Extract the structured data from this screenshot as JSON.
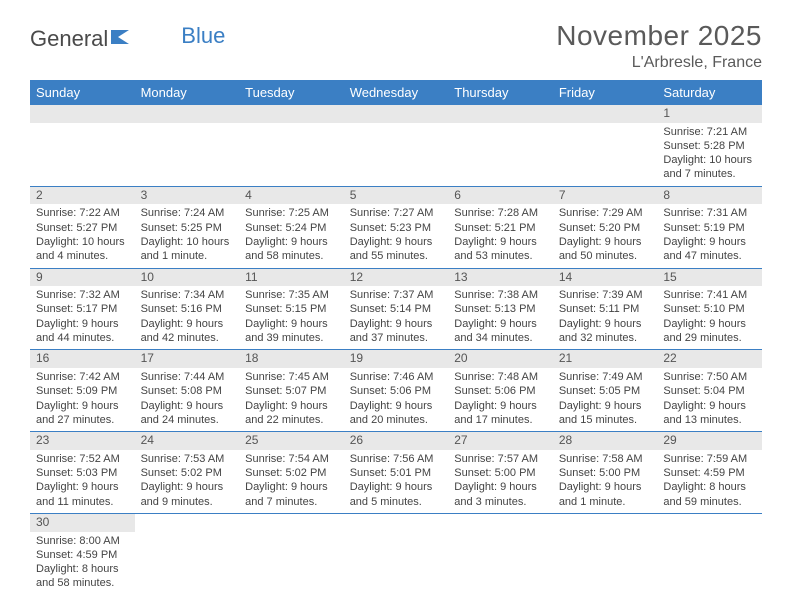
{
  "logo": {
    "part1": "General",
    "part2": "Blue"
  },
  "title": "November 2025",
  "location": "L'Arbresle, France",
  "colors": {
    "header_bg": "#3b7fc4",
    "header_text": "#ffffff",
    "daynum_bg": "#e8e8e8",
    "border": "#3b7fc4",
    "text": "#444444"
  },
  "weekdays": [
    "Sunday",
    "Monday",
    "Tuesday",
    "Wednesday",
    "Thursday",
    "Friday",
    "Saturday"
  ],
  "weeks": [
    [
      null,
      null,
      null,
      null,
      null,
      null,
      {
        "n": "1",
        "sunrise": "Sunrise: 7:21 AM",
        "sunset": "Sunset: 5:28 PM",
        "daylight": "Daylight: 10 hours and 7 minutes."
      }
    ],
    [
      {
        "n": "2",
        "sunrise": "Sunrise: 7:22 AM",
        "sunset": "Sunset: 5:27 PM",
        "daylight": "Daylight: 10 hours and 4 minutes."
      },
      {
        "n": "3",
        "sunrise": "Sunrise: 7:24 AM",
        "sunset": "Sunset: 5:25 PM",
        "daylight": "Daylight: 10 hours and 1 minute."
      },
      {
        "n": "4",
        "sunrise": "Sunrise: 7:25 AM",
        "sunset": "Sunset: 5:24 PM",
        "daylight": "Daylight: 9 hours and 58 minutes."
      },
      {
        "n": "5",
        "sunrise": "Sunrise: 7:27 AM",
        "sunset": "Sunset: 5:23 PM",
        "daylight": "Daylight: 9 hours and 55 minutes."
      },
      {
        "n": "6",
        "sunrise": "Sunrise: 7:28 AM",
        "sunset": "Sunset: 5:21 PM",
        "daylight": "Daylight: 9 hours and 53 minutes."
      },
      {
        "n": "7",
        "sunrise": "Sunrise: 7:29 AM",
        "sunset": "Sunset: 5:20 PM",
        "daylight": "Daylight: 9 hours and 50 minutes."
      },
      {
        "n": "8",
        "sunrise": "Sunrise: 7:31 AM",
        "sunset": "Sunset: 5:19 PM",
        "daylight": "Daylight: 9 hours and 47 minutes."
      }
    ],
    [
      {
        "n": "9",
        "sunrise": "Sunrise: 7:32 AM",
        "sunset": "Sunset: 5:17 PM",
        "daylight": "Daylight: 9 hours and 44 minutes."
      },
      {
        "n": "10",
        "sunrise": "Sunrise: 7:34 AM",
        "sunset": "Sunset: 5:16 PM",
        "daylight": "Daylight: 9 hours and 42 minutes."
      },
      {
        "n": "11",
        "sunrise": "Sunrise: 7:35 AM",
        "sunset": "Sunset: 5:15 PM",
        "daylight": "Daylight: 9 hours and 39 minutes."
      },
      {
        "n": "12",
        "sunrise": "Sunrise: 7:37 AM",
        "sunset": "Sunset: 5:14 PM",
        "daylight": "Daylight: 9 hours and 37 minutes."
      },
      {
        "n": "13",
        "sunrise": "Sunrise: 7:38 AM",
        "sunset": "Sunset: 5:13 PM",
        "daylight": "Daylight: 9 hours and 34 minutes."
      },
      {
        "n": "14",
        "sunrise": "Sunrise: 7:39 AM",
        "sunset": "Sunset: 5:11 PM",
        "daylight": "Daylight: 9 hours and 32 minutes."
      },
      {
        "n": "15",
        "sunrise": "Sunrise: 7:41 AM",
        "sunset": "Sunset: 5:10 PM",
        "daylight": "Daylight: 9 hours and 29 minutes."
      }
    ],
    [
      {
        "n": "16",
        "sunrise": "Sunrise: 7:42 AM",
        "sunset": "Sunset: 5:09 PM",
        "daylight": "Daylight: 9 hours and 27 minutes."
      },
      {
        "n": "17",
        "sunrise": "Sunrise: 7:44 AM",
        "sunset": "Sunset: 5:08 PM",
        "daylight": "Daylight: 9 hours and 24 minutes."
      },
      {
        "n": "18",
        "sunrise": "Sunrise: 7:45 AM",
        "sunset": "Sunset: 5:07 PM",
        "daylight": "Daylight: 9 hours and 22 minutes."
      },
      {
        "n": "19",
        "sunrise": "Sunrise: 7:46 AM",
        "sunset": "Sunset: 5:06 PM",
        "daylight": "Daylight: 9 hours and 20 minutes."
      },
      {
        "n": "20",
        "sunrise": "Sunrise: 7:48 AM",
        "sunset": "Sunset: 5:06 PM",
        "daylight": "Daylight: 9 hours and 17 minutes."
      },
      {
        "n": "21",
        "sunrise": "Sunrise: 7:49 AM",
        "sunset": "Sunset: 5:05 PM",
        "daylight": "Daylight: 9 hours and 15 minutes."
      },
      {
        "n": "22",
        "sunrise": "Sunrise: 7:50 AM",
        "sunset": "Sunset: 5:04 PM",
        "daylight": "Daylight: 9 hours and 13 minutes."
      }
    ],
    [
      {
        "n": "23",
        "sunrise": "Sunrise: 7:52 AM",
        "sunset": "Sunset: 5:03 PM",
        "daylight": "Daylight: 9 hours and 11 minutes."
      },
      {
        "n": "24",
        "sunrise": "Sunrise: 7:53 AM",
        "sunset": "Sunset: 5:02 PM",
        "daylight": "Daylight: 9 hours and 9 minutes."
      },
      {
        "n": "25",
        "sunrise": "Sunrise: 7:54 AM",
        "sunset": "Sunset: 5:02 PM",
        "daylight": "Daylight: 9 hours and 7 minutes."
      },
      {
        "n": "26",
        "sunrise": "Sunrise: 7:56 AM",
        "sunset": "Sunset: 5:01 PM",
        "daylight": "Daylight: 9 hours and 5 minutes."
      },
      {
        "n": "27",
        "sunrise": "Sunrise: 7:57 AM",
        "sunset": "Sunset: 5:00 PM",
        "daylight": "Daylight: 9 hours and 3 minutes."
      },
      {
        "n": "28",
        "sunrise": "Sunrise: 7:58 AM",
        "sunset": "Sunset: 5:00 PM",
        "daylight": "Daylight: 9 hours and 1 minute."
      },
      {
        "n": "29",
        "sunrise": "Sunrise: 7:59 AM",
        "sunset": "Sunset: 4:59 PM",
        "daylight": "Daylight: 8 hours and 59 minutes."
      }
    ],
    [
      {
        "n": "30",
        "sunrise": "Sunrise: 8:00 AM",
        "sunset": "Sunset: 4:59 PM",
        "daylight": "Daylight: 8 hours and 58 minutes."
      },
      null,
      null,
      null,
      null,
      null,
      null
    ]
  ]
}
